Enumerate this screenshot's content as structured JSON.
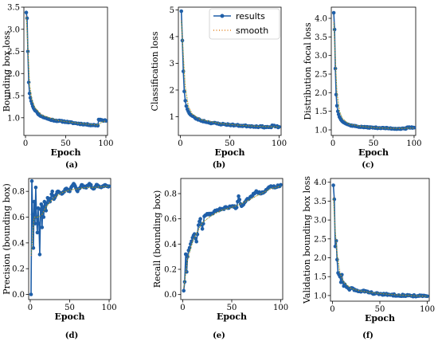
{
  "figure": {
    "legend": {
      "results_label": "results",
      "smooth_label": "smooth",
      "results_color": "#1f5fa8",
      "smooth_color": "#e3811d",
      "smooth_color_alt": "#3a9a3a",
      "placement": "top-right (panel b)"
    }
  },
  "chart_data": [
    {
      "id": "a",
      "type": "line",
      "caption": "(a)",
      "xlabel": "Epoch",
      "ylabel": "Bounding box loss",
      "xlim": [
        -2,
        102
      ],
      "ylim": [
        0.6,
        3.5
      ],
      "xticks": [
        0,
        50,
        100
      ],
      "yticks": [
        1.0,
        1.5,
        2.0,
        2.5,
        3.0,
        3.5
      ],
      "ytick_labels": [
        "1.0",
        "1.5",
        "2.0",
        "2.5",
        "3.0",
        "3.5"
      ],
      "anchors": [
        [
          1,
          3.38
        ],
        [
          2,
          3.25
        ],
        [
          3,
          2.5
        ],
        [
          4,
          1.8
        ],
        [
          5,
          1.55
        ],
        [
          6,
          1.45
        ],
        [
          8,
          1.32
        ],
        [
          10,
          1.22
        ],
        [
          15,
          1.1
        ],
        [
          20,
          1.03
        ],
        [
          30,
          0.96
        ],
        [
          40,
          0.93
        ],
        [
          50,
          0.91
        ],
        [
          60,
          0.88
        ],
        [
          70,
          0.86
        ],
        [
          80,
          0.84
        ],
        [
          88,
          0.83
        ],
        [
          90,
          0.82
        ],
        [
          91,
          0.96
        ],
        [
          95,
          0.95
        ],
        [
          100,
          0.93
        ]
      ],
      "smooth_anchors": [
        [
          1,
          3.3
        ],
        [
          3,
          2.6
        ],
        [
          5,
          1.75
        ],
        [
          8,
          1.4
        ],
        [
          12,
          1.22
        ],
        [
          20,
          1.06
        ],
        [
          40,
          0.94
        ],
        [
          60,
          0.89
        ],
        [
          80,
          0.85
        ],
        [
          90,
          0.84
        ],
        [
          95,
          0.9
        ],
        [
          100,
          0.93
        ]
      ],
      "noise": 0.01,
      "seed": 11
    },
    {
      "id": "b",
      "type": "line",
      "caption": "(b)",
      "xlabel": "Epoch",
      "ylabel": "Classification loss",
      "xlim": [
        -2,
        102
      ],
      "ylim": [
        0.3,
        5.1
      ],
      "xticks": [
        0,
        50,
        100
      ],
      "yticks": [
        1,
        2,
        3,
        4,
        5
      ],
      "ytick_labels": [
        "1",
        "2",
        "3",
        "4",
        "5"
      ],
      "anchors": [
        [
          1,
          4.95
        ],
        [
          2,
          3.85
        ],
        [
          3,
          2.7
        ],
        [
          4,
          1.95
        ],
        [
          5,
          1.6
        ],
        [
          6,
          1.4
        ],
        [
          8,
          1.2
        ],
        [
          10,
          1.08
        ],
        [
          15,
          0.95
        ],
        [
          20,
          0.87
        ],
        [
          30,
          0.78
        ],
        [
          40,
          0.73
        ],
        [
          50,
          0.7
        ],
        [
          60,
          0.67
        ],
        [
          70,
          0.65
        ],
        [
          80,
          0.63
        ],
        [
          90,
          0.61
        ],
        [
          92,
          0.6
        ],
        [
          93,
          0.68
        ],
        [
          96,
          0.63
        ],
        [
          100,
          0.62
        ]
      ],
      "smooth_anchors": [
        [
          1,
          4.6
        ],
        [
          3,
          3.3
        ],
        [
          5,
          2.1
        ],
        [
          8,
          1.4
        ],
        [
          12,
          1.1
        ],
        [
          20,
          0.9
        ],
        [
          40,
          0.75
        ],
        [
          60,
          0.68
        ],
        [
          80,
          0.64
        ],
        [
          100,
          0.62
        ]
      ],
      "noise": 0.012,
      "seed": 23
    },
    {
      "id": "c",
      "type": "line",
      "caption": "(c)",
      "xlabel": "Epoch",
      "ylabel": "Distribution focal loss",
      "xlim": [
        -2,
        102
      ],
      "ylim": [
        0.85,
        4.3
      ],
      "xticks": [
        0,
        50,
        100
      ],
      "yticks": [
        1.0,
        1.5,
        2.0,
        2.5,
        3.0,
        3.5,
        4.0
      ],
      "ytick_labels": [
        "1.0",
        "1.5",
        "2.0",
        "2.5",
        "3.0",
        "3.5",
        "4.0"
      ],
      "anchors": [
        [
          1,
          4.15
        ],
        [
          2,
          3.7
        ],
        [
          3,
          2.65
        ],
        [
          4,
          1.95
        ],
        [
          5,
          1.65
        ],
        [
          6,
          1.5
        ],
        [
          8,
          1.35
        ],
        [
          10,
          1.27
        ],
        [
          15,
          1.18
        ],
        [
          20,
          1.13
        ],
        [
          30,
          1.09
        ],
        [
          40,
          1.07
        ],
        [
          50,
          1.06
        ],
        [
          60,
          1.05
        ],
        [
          70,
          1.04
        ],
        [
          80,
          1.03
        ],
        [
          90,
          1.03
        ],
        [
          92,
          1.07
        ],
        [
          96,
          1.06
        ],
        [
          100,
          1.06
        ]
      ],
      "smooth_anchors": [
        [
          1,
          3.9
        ],
        [
          3,
          2.9
        ],
        [
          5,
          2.0
        ],
        [
          8,
          1.5
        ],
        [
          12,
          1.3
        ],
        [
          20,
          1.15
        ],
        [
          40,
          1.08
        ],
        [
          60,
          1.05
        ],
        [
          80,
          1.04
        ],
        [
          100,
          1.05
        ]
      ],
      "noise": 0.008,
      "seed": 37
    },
    {
      "id": "d",
      "type": "line",
      "caption": "(d)",
      "xlabel": "Epoch",
      "ylabel": "Precision (bounding box)",
      "xlim": [
        -2,
        102
      ],
      "ylim": [
        -0.04,
        0.9
      ],
      "xticks": [
        0,
        50,
        100
      ],
      "yticks": [
        0.0,
        0.2,
        0.4,
        0.6,
        0.8
      ],
      "ytick_labels": [
        "0.0",
        "0.2",
        "0.4",
        "0.6",
        "0.8"
      ],
      "anchors": [
        [
          1,
          0.0
        ],
        [
          2,
          0.88
        ],
        [
          3,
          0.62
        ],
        [
          4,
          0.36
        ],
        [
          5,
          0.72
        ],
        [
          6,
          0.55
        ],
        [
          7,
          0.83
        ],
        [
          8,
          0.6
        ],
        [
          9,
          0.48
        ],
        [
          10,
          0.67
        ],
        [
          11,
          0.55
        ],
        [
          12,
          0.31
        ],
        [
          13,
          0.66
        ],
        [
          14,
          0.7
        ],
        [
          15,
          0.52
        ],
        [
          16,
          0.68
        ],
        [
          17,
          0.6
        ],
        [
          18,
          0.72
        ],
        [
          20,
          0.65
        ],
        [
          22,
          0.75
        ],
        [
          25,
          0.72
        ],
        [
          28,
          0.8
        ],
        [
          30,
          0.74
        ],
        [
          35,
          0.8
        ],
        [
          40,
          0.78
        ],
        [
          45,
          0.82
        ],
        [
          50,
          0.8
        ],
        [
          55,
          0.86
        ],
        [
          60,
          0.8
        ],
        [
          65,
          0.85
        ],
        [
          70,
          0.83
        ],
        [
          75,
          0.86
        ],
        [
          80,
          0.82
        ],
        [
          85,
          0.85
        ],
        [
          90,
          0.83
        ],
        [
          95,
          0.85
        ],
        [
          100,
          0.84
        ]
      ],
      "smooth_anchors": [
        [
          1,
          0.3
        ],
        [
          5,
          0.6
        ],
        [
          10,
          0.6
        ],
        [
          15,
          0.62
        ],
        [
          20,
          0.68
        ],
        [
          30,
          0.75
        ],
        [
          40,
          0.79
        ],
        [
          50,
          0.81
        ],
        [
          60,
          0.82
        ],
        [
          70,
          0.83
        ],
        [
          80,
          0.83
        ],
        [
          100,
          0.84
        ]
      ],
      "noise": 0.018,
      "seed": 51
    },
    {
      "id": "e",
      "type": "line",
      "caption": "(e)",
      "xlabel": "Epoch",
      "ylabel": "Recall (bounding box)",
      "xlim": [
        -2,
        102
      ],
      "ylim": [
        -0.04,
        0.92
      ],
      "xticks": [
        0,
        50,
        100
      ],
      "yticks": [
        0.0,
        0.2,
        0.4,
        0.6,
        0.8
      ],
      "ytick_labels": [
        "0.0",
        "0.2",
        "0.4",
        "0.6",
        "0.8"
      ],
      "anchors": [
        [
          1,
          0.03
        ],
        [
          2,
          0.1
        ],
        [
          3,
          0.32
        ],
        [
          4,
          0.18
        ],
        [
          5,
          0.3
        ],
        [
          6,
          0.35
        ],
        [
          8,
          0.4
        ],
        [
          10,
          0.45
        ],
        [
          12,
          0.48
        ],
        [
          14,
          0.42
        ],
        [
          16,
          0.55
        ],
        [
          18,
          0.6
        ],
        [
          20,
          0.52
        ],
        [
          22,
          0.62
        ],
        [
          25,
          0.64
        ],
        [
          30,
          0.64
        ],
        [
          35,
          0.67
        ],
        [
          40,
          0.68
        ],
        [
          45,
          0.69
        ],
        [
          50,
          0.7
        ],
        [
          55,
          0.69
        ],
        [
          57,
          0.78
        ],
        [
          60,
          0.7
        ],
        [
          65,
          0.75
        ],
        [
          70,
          0.78
        ],
        [
          75,
          0.82
        ],
        [
          80,
          0.8
        ],
        [
          85,
          0.83
        ],
        [
          90,
          0.86
        ],
        [
          95,
          0.85
        ],
        [
          100,
          0.87
        ]
      ],
      "smooth_anchors": [
        [
          1,
          0.05
        ],
        [
          5,
          0.28
        ],
        [
          10,
          0.42
        ],
        [
          15,
          0.5
        ],
        [
          20,
          0.57
        ],
        [
          30,
          0.63
        ],
        [
          40,
          0.67
        ],
        [
          50,
          0.69
        ],
        [
          60,
          0.72
        ],
        [
          70,
          0.76
        ],
        [
          80,
          0.8
        ],
        [
          90,
          0.84
        ],
        [
          100,
          0.86
        ]
      ],
      "noise": 0.018,
      "seed": 67
    },
    {
      "id": "f",
      "type": "line",
      "caption": "(f)",
      "xlabel": "Epoch",
      "ylabel": "Validation bounding box loss",
      "xlim": [
        -2,
        102
      ],
      "ylim": [
        0.85,
        4.1
      ],
      "xticks": [
        0,
        50,
        100
      ],
      "yticks": [
        1.0,
        1.5,
        2.0,
        2.5,
        3.0,
        3.5,
        4.0
      ],
      "ytick_labels": [
        "1.0",
        "1.5",
        "2.0",
        "2.5",
        "3.0",
        "3.5",
        "4.0"
      ],
      "anchors": [
        [
          1,
          3.92
        ],
        [
          2,
          3.55
        ],
        [
          3,
          2.3
        ],
        [
          4,
          2.45
        ],
        [
          5,
          1.95
        ],
        [
          6,
          1.6
        ],
        [
          7,
          1.55
        ],
        [
          8,
          1.5
        ],
        [
          9,
          1.35
        ],
        [
          10,
          1.55
        ],
        [
          11,
          1.35
        ],
        [
          12,
          1.25
        ],
        [
          13,
          1.3
        ],
        [
          15,
          1.22
        ],
        [
          18,
          1.15
        ],
        [
          20,
          1.2
        ],
        [
          25,
          1.13
        ],
        [
          30,
          1.1
        ],
        [
          35,
          1.12
        ],
        [
          40,
          1.08
        ],
        [
          45,
          1.05
        ],
        [
          50,
          1.04
        ],
        [
          60,
          1.02
        ],
        [
          70,
          1.01
        ],
        [
          80,
          1.0
        ],
        [
          90,
          0.99
        ],
        [
          100,
          0.98
        ]
      ],
      "smooth_anchors": [
        [
          1,
          3.6
        ],
        [
          3,
          2.7
        ],
        [
          5,
          2.1
        ],
        [
          8,
          1.6
        ],
        [
          12,
          1.35
        ],
        [
          20,
          1.18
        ],
        [
          30,
          1.12
        ],
        [
          40,
          1.08
        ],
        [
          60,
          1.03
        ],
        [
          80,
          1.0
        ],
        [
          100,
          0.98
        ]
      ],
      "noise": 0.015,
      "seed": 83
    }
  ]
}
